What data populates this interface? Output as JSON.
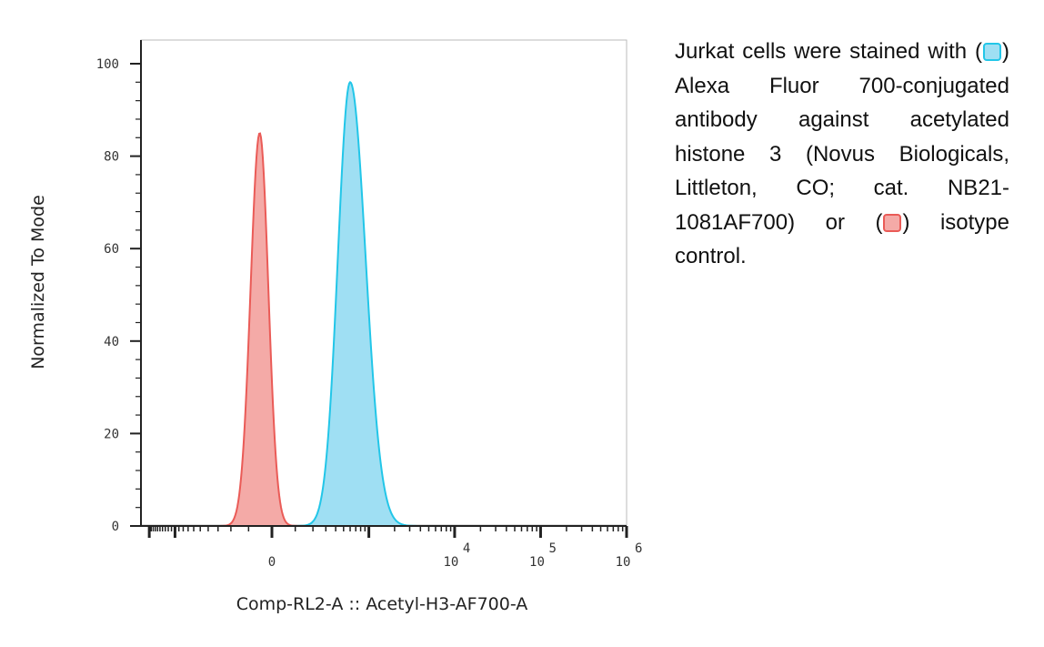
{
  "colors": {
    "treated_stroke": "#22c6e8",
    "treated_fill": "#9fdff3",
    "isotype_stroke": "#ea5b57",
    "isotype_fill": "#f4aaa7",
    "overlap_fill": "#c29fb6",
    "axis": "#222222"
  },
  "caption": {
    "part1": "Jurkat cells were stained with (",
    "part2": ") Alexa Fluor 700-conjugated antibody against acetylated histone 3 (Novus Biologicals, Littleton, CO; cat. NB21-1081AF700) or (",
    "part3": ") isotype control.",
    "swatch_treated_icon": "cyan-square-icon",
    "swatch_isotype_icon": "red-square-icon"
  },
  "chart_data": {
    "type": "area",
    "xlabel": "Comp-RL2-A :: Acetyl-H3-AF700-A",
    "ylabel": "Normalized To Mode",
    "x_scale": "biexponential",
    "xticks": [
      {
        "value": 0,
        "base": "0",
        "exp": ""
      },
      {
        "value": 10000,
        "base": "10",
        "exp": "4"
      },
      {
        "value": 100000,
        "base": "10",
        "exp": "5"
      },
      {
        "value": 1000000,
        "base": "10",
        "exp": "6"
      }
    ],
    "ylim": [
      0,
      100
    ],
    "yticks": [
      "0",
      "20",
      "40",
      "60",
      "80",
      "100"
    ],
    "grid": false,
    "series": [
      {
        "role": "isotype",
        "peak_x": -50,
        "peak_y": 85
      },
      {
        "role": "antibody",
        "peak_x": 600,
        "peak_y": 96
      }
    ]
  }
}
